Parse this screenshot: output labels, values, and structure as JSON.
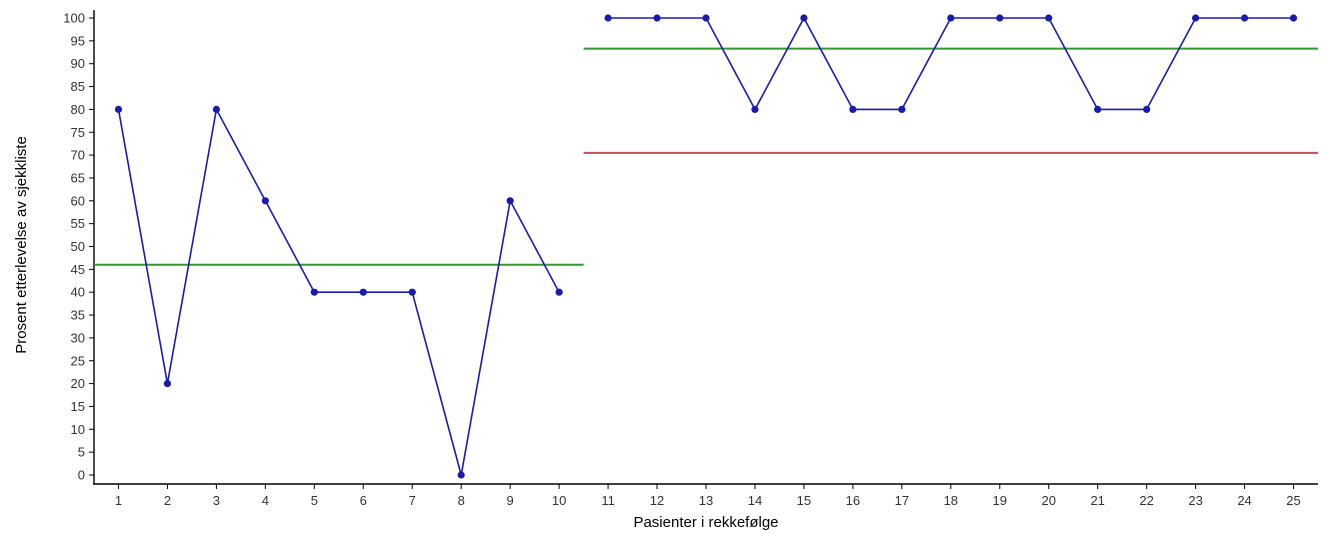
{
  "chart_data": {
    "type": "line",
    "title": "",
    "xlabel": "Pasienter i rekkefølge",
    "ylabel": "Prosent etterlevelse av sjekkliste",
    "xlim": [
      0.5,
      25.5
    ],
    "ylim": [
      0,
      100
    ],
    "x_ticks": [
      1,
      2,
      3,
      4,
      5,
      6,
      7,
      8,
      9,
      10,
      11,
      12,
      13,
      14,
      15,
      16,
      17,
      18,
      19,
      20,
      21,
      22,
      23,
      24,
      25
    ],
    "y_ticks": [
      0,
      5,
      10,
      15,
      20,
      25,
      30,
      35,
      40,
      45,
      50,
      55,
      60,
      65,
      70,
      75,
      80,
      85,
      90,
      95,
      100
    ],
    "grid": false,
    "series": [
      {
        "values_x": [
          1,
          2,
          3,
          4,
          5,
          6,
          7,
          8,
          9,
          10,
          11,
          12,
          13,
          14,
          15,
          16,
          17,
          18,
          19,
          20,
          21,
          22,
          23,
          24,
          25
        ],
        "values_y": [
          80,
          20,
          80,
          60,
          40,
          40,
          40,
          0,
          60,
          40,
          100,
          100,
          100,
          80,
          100,
          80,
          80,
          100,
          100,
          100,
          80,
          80,
          100,
          100,
          100
        ],
        "segments": [
          [
            1,
            10
          ],
          [
            11,
            25
          ]
        ],
        "color": "#1a1ab0"
      }
    ],
    "reference_lines": [
      {
        "kind": "center",
        "from_x": 0.5,
        "to_x": 10.5,
        "y": 46,
        "color": "#2e9a2e"
      },
      {
        "kind": "center",
        "from_x": 10.5,
        "to_x": 25.5,
        "y": 93.3,
        "color": "#2e9a2e"
      },
      {
        "kind": "lower-limit",
        "from_x": 10.5,
        "to_x": 25.5,
        "y": 70.5,
        "color": "#c0504d"
      }
    ],
    "colors": {
      "line": "#1a1ab0",
      "marker": "#1a1ab0",
      "center": "#2e9a2e",
      "limit": "#c0504d",
      "axis": "#000000"
    }
  }
}
